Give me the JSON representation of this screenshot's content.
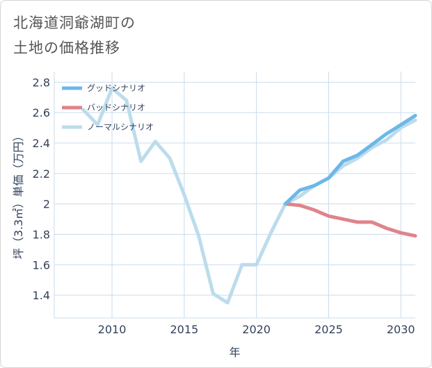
{
  "header": {
    "title_line1": "北海道洞爺湖町の",
    "title_line2": "土地の価格推移"
  },
  "chart_data": {
    "type": "line",
    "title": "北海道洞爺湖町の土地の価格推移",
    "xlabel": "年",
    "ylabel": "坪（3.3㎡）単価（万円）",
    "xlim": [
      2006,
      2031
    ],
    "ylim": [
      1.25,
      2.87
    ],
    "xticks": [
      2010,
      2015,
      2020,
      2025,
      2030
    ],
    "yticks": [
      1.4,
      1.6,
      1.8,
      2,
      2.2,
      2.4,
      2.6,
      2.8
    ],
    "ytick_labels": [
      "1.4",
      "1.6",
      "1.8",
      "2",
      "2.2",
      "2.4",
      "2.6",
      "2.8"
    ],
    "grid": true,
    "legend_position": "top-left",
    "series": [
      {
        "name": "グッドシナリオ",
        "color": "#6cb8e8",
        "x": [
          2022,
          2023,
          2024,
          2025,
          2026,
          2027,
          2028,
          2029,
          2030,
          2031
        ],
        "values": [
          2.0,
          2.09,
          2.12,
          2.17,
          2.28,
          2.32,
          2.39,
          2.46,
          2.52,
          2.58
        ]
      },
      {
        "name": "バッドシナリオ",
        "color": "#e0838b",
        "x": [
          2022,
          2023,
          2024,
          2025,
          2026,
          2027,
          2028,
          2029,
          2030,
          2031
        ],
        "values": [
          2.0,
          1.99,
          1.96,
          1.92,
          1.9,
          1.88,
          1.88,
          1.84,
          1.81,
          1.79
        ]
      },
      {
        "name": "ノーマルシナリオ",
        "color": "#bcdcec",
        "x": [
          2008,
          2009,
          2010,
          2011,
          2012,
          2013,
          2014,
          2015,
          2016,
          2017,
          2018,
          2019,
          2020,
          2021,
          2022,
          2023,
          2024,
          2025,
          2026,
          2027,
          2028,
          2029,
          2030,
          2031
        ],
        "values": [
          2.62,
          2.52,
          2.76,
          2.68,
          2.28,
          2.41,
          2.3,
          2.06,
          1.79,
          1.41,
          1.35,
          1.6,
          1.6,
          1.81,
          2.0,
          2.05,
          2.12,
          2.17,
          2.25,
          2.3,
          2.37,
          2.42,
          2.5,
          2.55
        ]
      }
    ]
  }
}
